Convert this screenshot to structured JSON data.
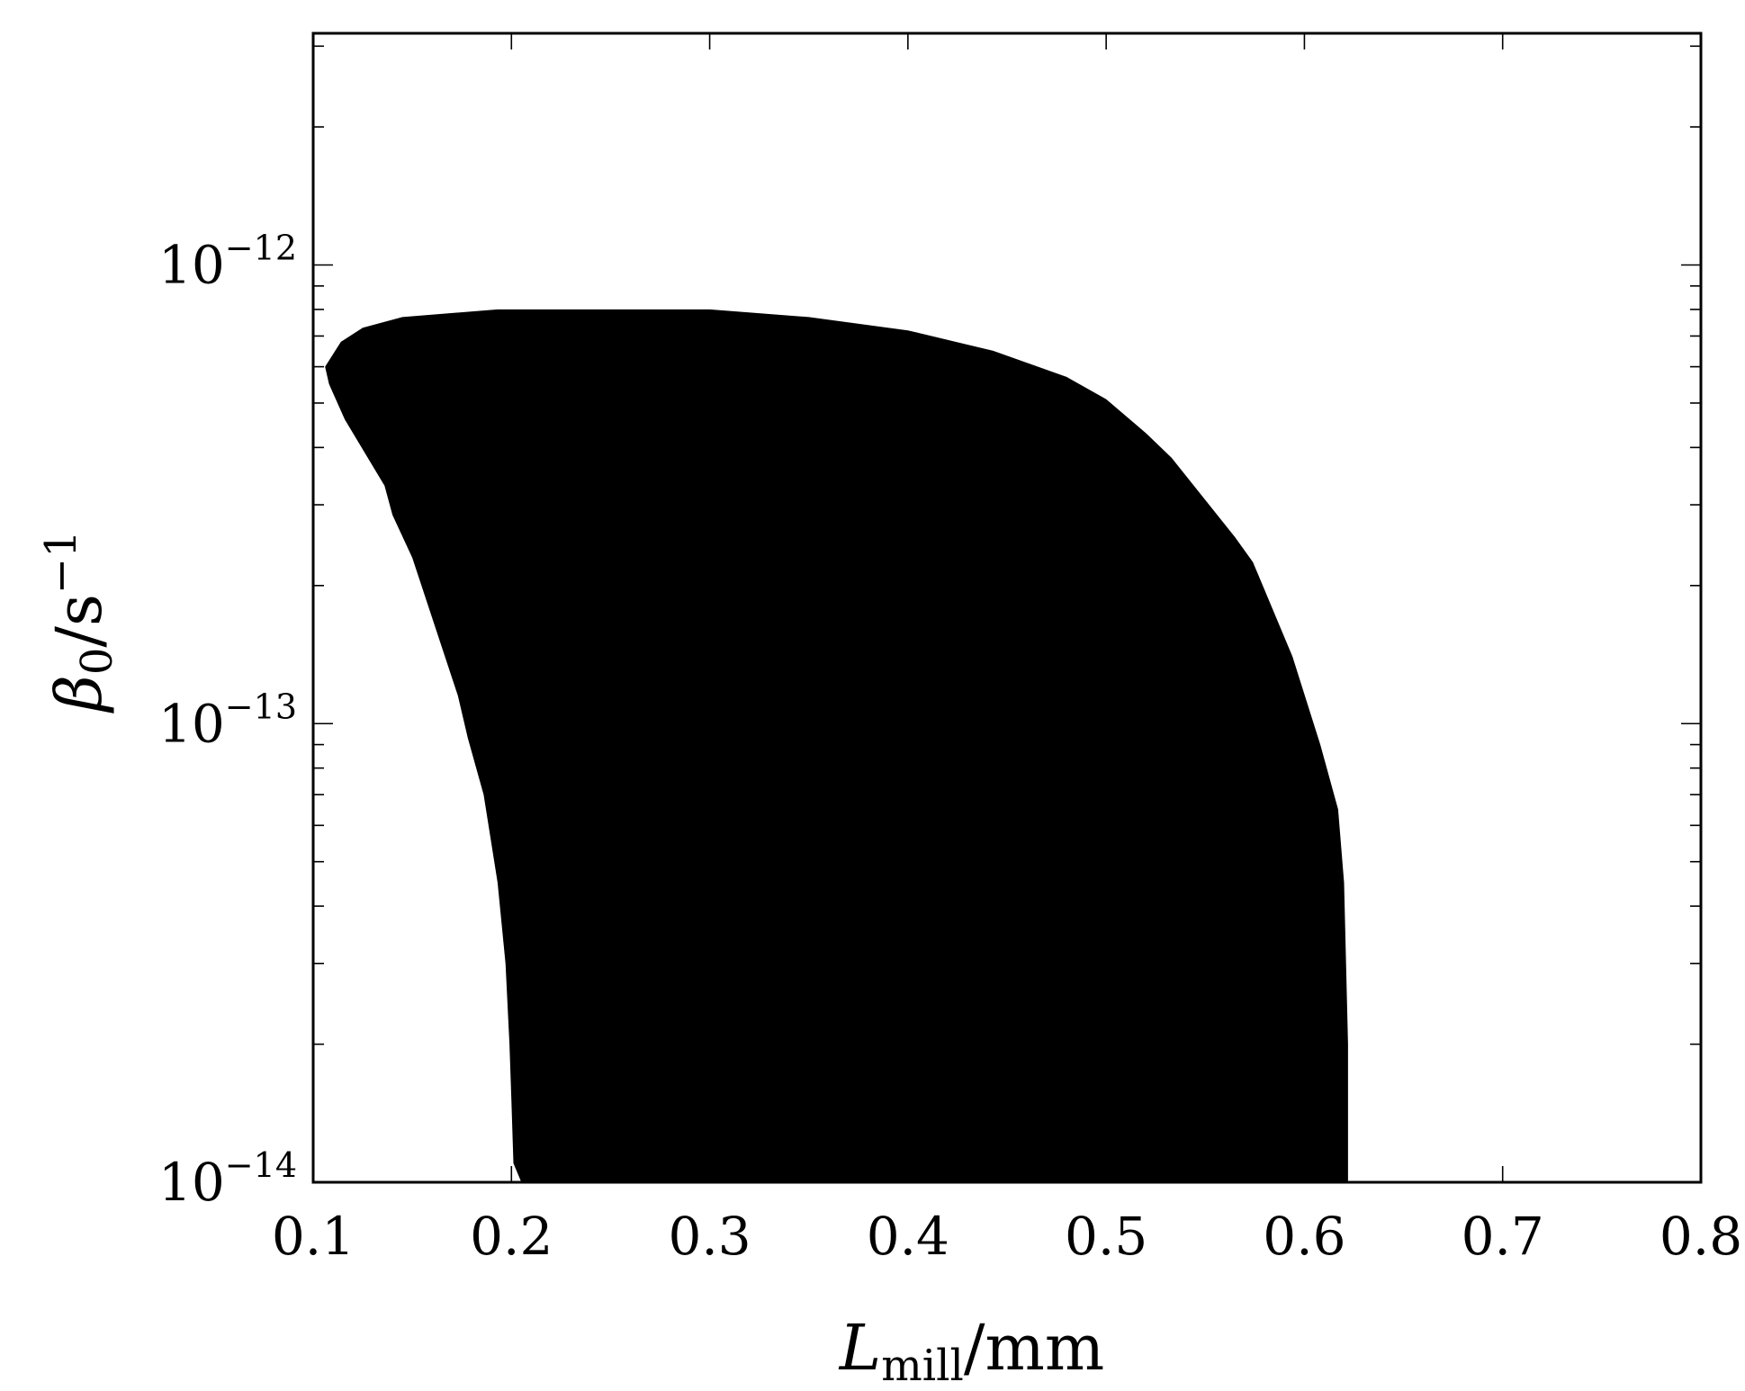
{
  "chart_data": {
    "type": "area",
    "title": "",
    "xlabel": {
      "main": "L",
      "sub": "mill",
      "unit": "/mm"
    },
    "ylabel": {
      "main": "β",
      "sub": "0",
      "unit": "/s",
      "exp": "−1"
    },
    "xlim": [
      0.1,
      0.8
    ],
    "ylim": [
      1e-14,
      3.2e-12
    ],
    "yscale": "log",
    "grid": false,
    "legend": "none",
    "fill_color": "#000000",
    "x_ticks": [
      0.1,
      0.2,
      0.3,
      0.4,
      0.5,
      0.6,
      0.7,
      0.8
    ],
    "x_tick_labels": [
      "0.1",
      "0.2",
      "0.3",
      "0.4",
      "0.5",
      "0.6",
      "0.7",
      "0.8"
    ],
    "y_ticks": [
      {
        "value": 1e-12,
        "base": "10",
        "exp": "−12"
      },
      {
        "value": 1e-13,
        "base": "10",
        "exp": "−13"
      },
      {
        "value": 1e-14,
        "base": "10",
        "exp": "−14"
      }
    ],
    "series": [
      {
        "boundary": [
          [
            0.205,
            1e-14
          ],
          [
            0.201,
            1.1e-14
          ],
          [
            0.2,
            1.5e-14
          ],
          [
            0.199,
            2e-14
          ],
          [
            0.197,
            3e-14
          ],
          [
            0.193,
            4.5e-14
          ],
          [
            0.186,
            7e-14
          ],
          [
            0.178,
            9.3e-14
          ],
          [
            0.173,
            1.15e-13
          ],
          [
            0.15,
            2.3e-13
          ],
          [
            0.14,
            2.85e-13
          ],
          [
            0.136,
            3.3e-13
          ],
          [
            0.116,
            4.6e-13
          ],
          [
            0.108,
            5.5e-13
          ],
          [
            0.106,
            6e-13
          ],
          [
            0.114,
            6.8e-13
          ],
          [
            0.125,
            7.3e-13
          ],
          [
            0.145,
            7.7e-13
          ],
          [
            0.193,
            8e-13
          ],
          [
            0.3,
            8e-13
          ],
          [
            0.35,
            7.7e-13
          ],
          [
            0.4,
            7.2e-13
          ],
          [
            0.443,
            6.5e-13
          ],
          [
            0.48,
            5.7e-13
          ],
          [
            0.5,
            5.1e-13
          ],
          [
            0.52,
            4.3e-13
          ],
          [
            0.533,
            3.8e-13
          ],
          [
            0.565,
            2.55e-13
          ],
          [
            0.574,
            2.25e-13
          ],
          [
            0.594,
            1.4e-13
          ],
          [
            0.608,
            9e-14
          ],
          [
            0.617,
            6.5e-14
          ],
          [
            0.62,
            4.5e-14
          ],
          [
            0.621,
            3e-14
          ],
          [
            0.622,
            2e-14
          ],
          [
            0.622,
            1e-14
          ]
        ]
      }
    ]
  }
}
